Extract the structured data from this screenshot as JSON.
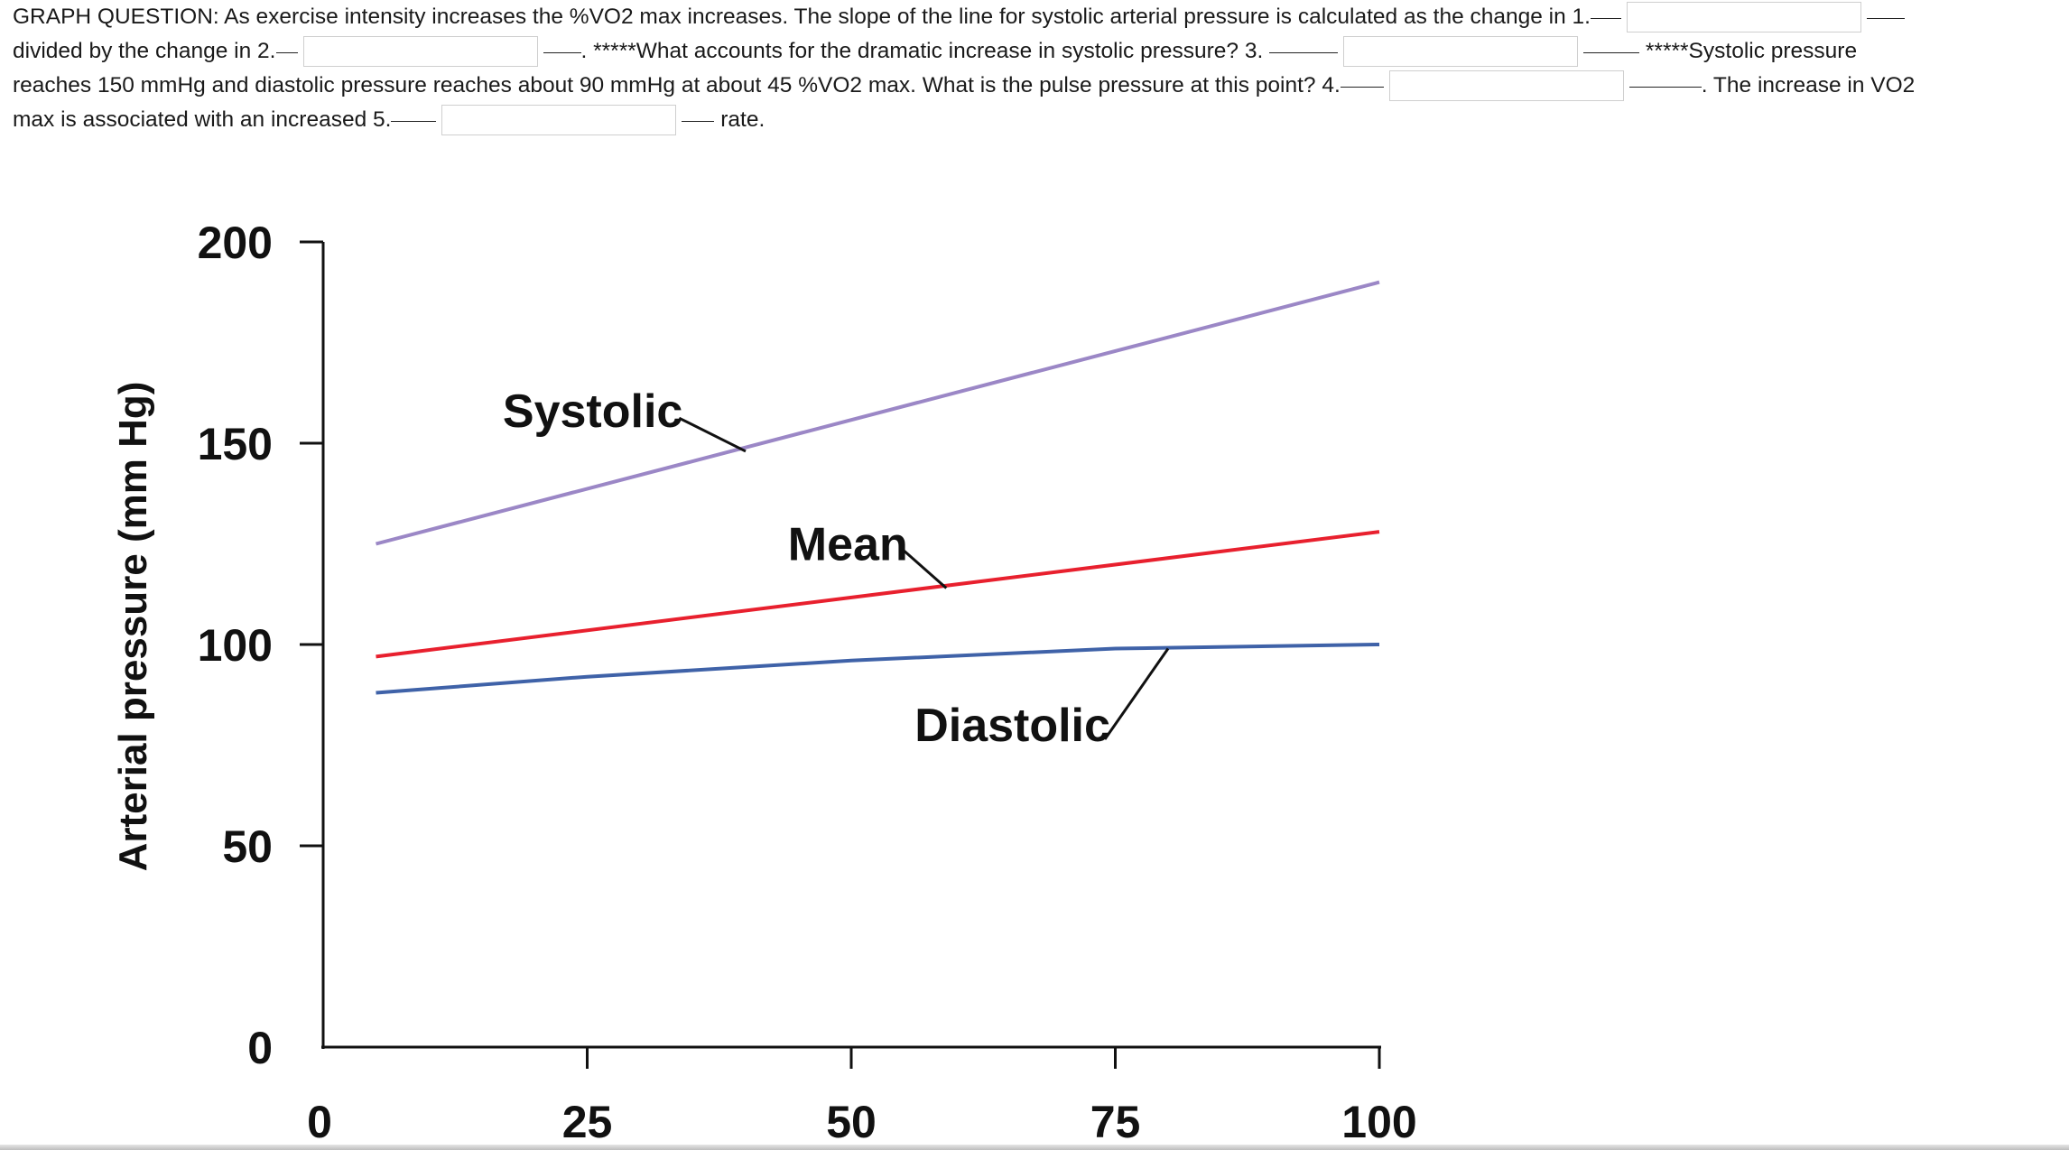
{
  "question": {
    "lines": [
      {
        "parts": [
          {
            "t": "text",
            "v": "GRAPH QUESTION: As exercise intensity increases the %VO2 max increases. The slope of the line for systolic arterial pressure is calculated as the change in 1."
          },
          {
            "t": "uline",
            "w": 34
          },
          {
            "t": "box",
            "id": "answer-1"
          },
          {
            "t": "uline",
            "w": 42
          }
        ]
      },
      {
        "parts": [
          {
            "t": "text",
            "v": "divided by the change in 2."
          },
          {
            "t": "uline",
            "w": 24
          },
          {
            "t": "box",
            "id": "answer-2"
          },
          {
            "t": "uline",
            "w": 42
          },
          {
            "t": "text",
            "v": ". *****What accounts for the dramatic increase in systolic pressure? 3. "
          },
          {
            "t": "uline",
            "w": 76
          },
          {
            "t": "box",
            "id": "answer-3"
          },
          {
            "t": "uline",
            "w": 62
          },
          {
            "t": "text",
            "v": " *****Systolic pressure"
          }
        ]
      },
      {
        "parts": [
          {
            "t": "text",
            "v": "reaches 150 mmHg and diastolic pressure reaches about 90 mmHg at about 45 %VO2 max. What is the pulse pressure at this point? 4."
          },
          {
            "t": "uline",
            "w": 48
          },
          {
            "t": "box",
            "id": "answer-4"
          },
          {
            "t": "uline",
            "w": 80
          },
          {
            "t": "text",
            "v": ". The increase in VO2"
          }
        ]
      },
      {
        "parts": [
          {
            "t": "text",
            "v": "max is associated with an increased 5."
          },
          {
            "t": "uline",
            "w": 50
          },
          {
            "t": "box",
            "id": "answer-5"
          },
          {
            "t": "uline",
            "w": 36
          },
          {
            "t": "text",
            "v": " rate."
          }
        ]
      }
    ],
    "answers": {
      "answer-1": "",
      "answer-2": "",
      "answer-3": "",
      "answer-4": "",
      "answer-5": ""
    }
  },
  "chart_data": {
    "type": "line",
    "ylabel": "Arterial pressure (mm Hg)",
    "xlabel": "",
    "xlim": [
      0,
      100
    ],
    "ylim": [
      0,
      200
    ],
    "xticks": [
      0,
      25,
      50,
      75,
      100
    ],
    "yticks": [
      0,
      50,
      100,
      150,
      200
    ],
    "grid": false,
    "colors": {
      "Systolic": "#9b87c6",
      "Mean": "#e8202e",
      "Diastolic": "#3f62a8",
      "axis": "#111111"
    },
    "series": [
      {
        "name": "Systolic",
        "x": [
          5,
          100
        ],
        "y": [
          125,
          190
        ]
      },
      {
        "name": "Mean",
        "x": [
          5,
          100
        ],
        "y": [
          97,
          128
        ]
      },
      {
        "name": "Diastolic",
        "x": [
          5,
          25,
          50,
          75,
          100
        ],
        "y": [
          88,
          92,
          96,
          99,
          100
        ]
      }
    ],
    "annotations": [
      {
        "text": "Systolic",
        "series": "Systolic",
        "x_text": 17,
        "y_text": 154,
        "x_point": 40,
        "y_point": 148
      },
      {
        "text": "Mean",
        "series": "Mean",
        "x_text": 44,
        "y_text": 121,
        "x_point": 59,
        "y_point": 114
      },
      {
        "text": "Diastolic",
        "series": "Diastolic",
        "x_text": 56,
        "y_text": 76,
        "x_point": 80,
        "y_point": 99
      }
    ]
  }
}
